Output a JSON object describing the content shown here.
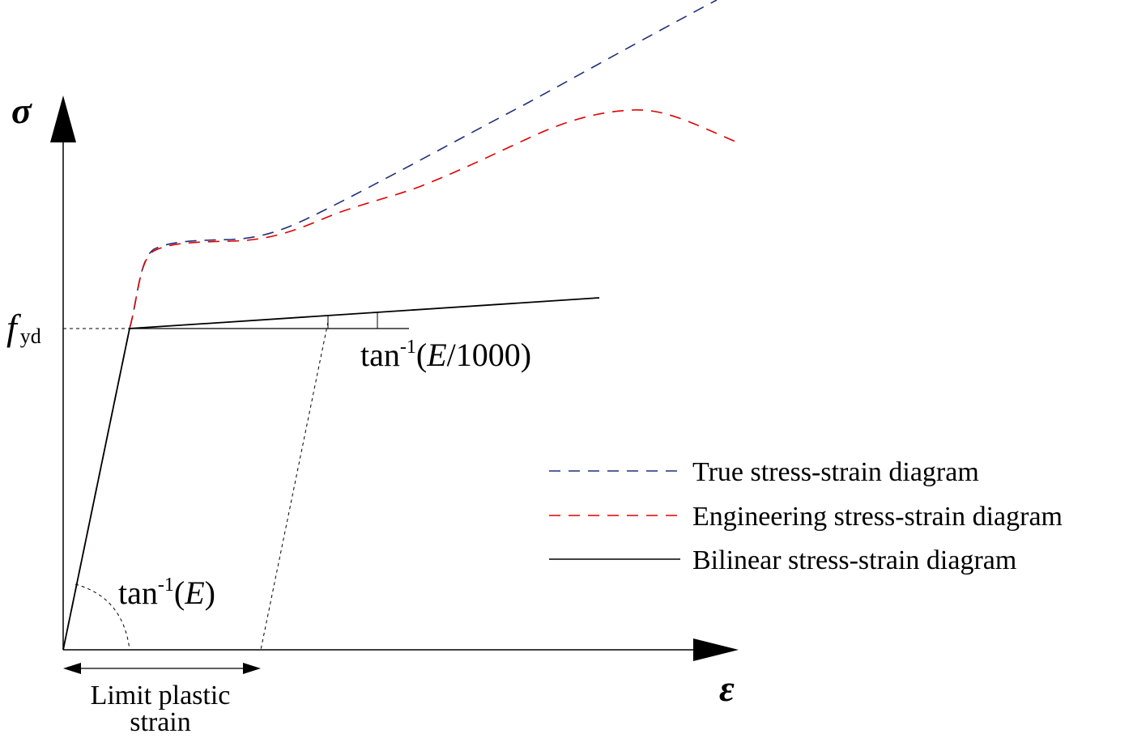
{
  "axes": {
    "y_symbol": "σ",
    "x_symbol": "ε"
  },
  "fyd": {
    "base": "f",
    "sub": "yd"
  },
  "annotations": {
    "elastic_slope": {
      "prefix": "tan",
      "sup": "-1",
      "open": "(",
      "var": "E",
      "rest": ")"
    },
    "hardening_slope": {
      "prefix": "tan",
      "sup": "-1",
      "open": "(",
      "var": "E",
      "rest": "/1000)"
    },
    "limit_strain": {
      "line1": "Limit plastic",
      "line2": "strain"
    }
  },
  "legend": {
    "placement": "right-middle",
    "items": [
      {
        "label": "True stress-strain diagram",
        "color": "#1f2f7a",
        "style": "dashed"
      },
      {
        "label": "Engineering stress-strain diagram",
        "color": "#e00000",
        "style": "dashed"
      },
      {
        "label": "Bilinear stress-strain diagram",
        "color": "#000000",
        "style": "solid"
      }
    ]
  }
}
